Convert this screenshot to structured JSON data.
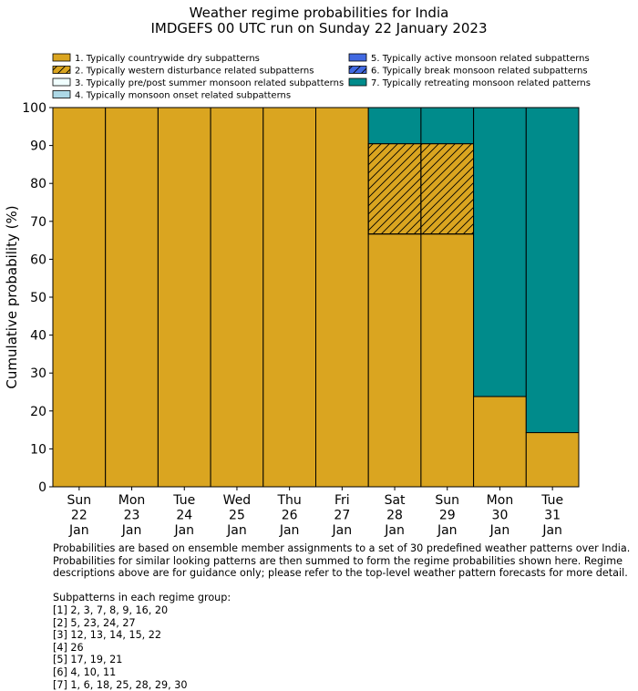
{
  "chart_data": {
    "type": "bar",
    "stacked": true,
    "title": "Weather regime probabilities for India",
    "subtitle": "IMDGEFS 00 UTC run on Sunday 22 January 2023",
    "ylabel": "Cumulative probability (%)",
    "ylim": [
      0,
      100
    ],
    "yticks": [
      0,
      10,
      20,
      30,
      40,
      50,
      60,
      70,
      80,
      90,
      100
    ],
    "categories": [
      [
        "Sun",
        "22",
        "Jan"
      ],
      [
        "Mon",
        "23",
        "Jan"
      ],
      [
        "Tue",
        "24",
        "Jan"
      ],
      [
        "Wed",
        "25",
        "Jan"
      ],
      [
        "Thu",
        "26",
        "Jan"
      ],
      [
        "Fri",
        "27",
        "Jan"
      ],
      [
        "Sat",
        "28",
        "Jan"
      ],
      [
        "Sun",
        "29",
        "Jan"
      ],
      [
        "Mon",
        "30",
        "Jan"
      ],
      [
        "Tue",
        "31",
        "Jan"
      ]
    ],
    "legend_placement": "top",
    "series": [
      {
        "name": "1. Typically countrywide dry subpatterns",
        "color": "#DAA520",
        "hatch": false,
        "values": [
          100,
          100,
          100,
          100,
          100,
          100,
          66.67,
          66.67,
          23.81,
          14.29
        ]
      },
      {
        "name": "2. Typically western disturbance related subpatterns",
        "color": "#DAA520",
        "hatch": true,
        "values": [
          0,
          0,
          0,
          0,
          0,
          0,
          23.81,
          23.81,
          0,
          0
        ]
      },
      {
        "name": "3. Typically pre/post summer monsoon related subpatterns",
        "color": "#F0FFFF",
        "hatch": false,
        "values": [
          0,
          0,
          0,
          0,
          0,
          0,
          0,
          0,
          0,
          0
        ]
      },
      {
        "name": "4. Typically monsoon onset related subpatterns",
        "color": "#ADD8E6",
        "hatch": false,
        "values": [
          0,
          0,
          0,
          0,
          0,
          0,
          0,
          0,
          0,
          0
        ]
      },
      {
        "name": "5. Typically active monsoon related subpatterns",
        "color": "#4169E1",
        "hatch": false,
        "values": [
          0,
          0,
          0,
          0,
          0,
          0,
          0,
          0,
          0,
          0
        ]
      },
      {
        "name": "6. Typically break monsoon related subpatterns",
        "color": "#4169E1",
        "hatch": true,
        "values": [
          0,
          0,
          0,
          0,
          0,
          0,
          0,
          0,
          0,
          0
        ]
      },
      {
        "name": "7. Typically retreating monsoon related patterns",
        "color": "#008B8B",
        "hatch": false,
        "values": [
          0,
          0,
          0,
          0,
          0,
          0,
          9.52,
          9.52,
          76.19,
          85.71
        ]
      }
    ]
  },
  "notes": {
    "para": "Probabilities are based on ensemble member assignments to a set of 30 predefined weather patterns over India.\nProbabilities for similar looking patterns are then summed to form the regime probabilities shown here. Regime\ndescriptions above are for guidance only; please refer to the top-level weather pattern forecasts for more detail.",
    "groups": "Subpatterns in each regime group:\n[1] 2, 3, 7, 8, 9, 16, 20\n[2] 5, 23, 24, 27\n[3] 12, 13, 14, 15, 22\n[4] 26\n[5] 17, 19, 21\n[6] 4, 10, 11\n[7] 1, 6, 18, 25, 28, 29, 30"
  }
}
